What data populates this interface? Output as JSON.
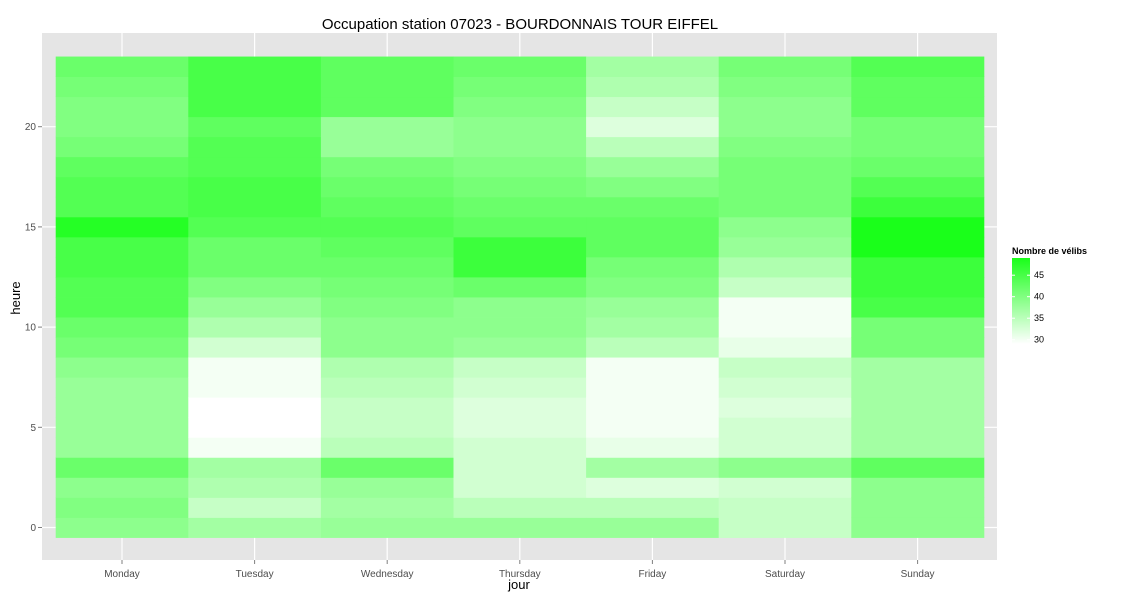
{
  "chart_data": {
    "type": "heatmap",
    "title": "Occupation station 07023 - BOURDONNAIS TOUR EIFFEL",
    "xlabel": "jour",
    "ylabel": "heure",
    "x_categories": [
      "Monday",
      "Tuesday",
      "Wednesday",
      "Thursday",
      "Friday",
      "Saturday",
      "Sunday"
    ],
    "y_hours": [
      0,
      1,
      2,
      3,
      4,
      5,
      6,
      7,
      8,
      9,
      10,
      11,
      12,
      13,
      14,
      15,
      16,
      17,
      18,
      19,
      20,
      21,
      22,
      23
    ],
    "y_ticks": [
      0,
      5,
      10,
      15,
      20
    ],
    "y_tick_labels": [
      "0",
      "5",
      "10",
      "15",
      "20"
    ],
    "value_range": [
      29,
      49
    ],
    "values": [
      [
        39,
        40,
        39,
        42,
        38,
        38,
        38,
        38,
        39,
        41,
        42,
        44,
        44,
        45,
        45,
        48,
        44,
        44,
        43,
        41,
        40,
        40,
        41,
        42
      ],
      [
        37,
        34,
        36,
        37,
        30,
        29,
        29,
        30,
        30,
        33,
        36,
        38,
        40,
        42,
        42,
        44,
        45,
        45,
        44,
        44,
        43,
        45,
        45,
        45
      ],
      [
        38,
        37,
        38,
        42,
        35,
        34,
        34,
        35,
        36,
        39,
        39,
        40,
        41,
        42,
        43,
        44,
        43,
        42,
        41,
        38,
        38,
        43,
        43,
        43
      ],
      [
        38,
        35,
        33,
        33,
        33,
        32,
        32,
        33,
        34,
        38,
        39,
        39,
        42,
        46,
        46,
        43,
        42,
        41,
        40,
        39,
        39,
        40,
        41,
        42
      ],
      [
        38,
        35,
        32,
        37,
        31,
        30,
        30,
        30,
        30,
        35,
        37,
        38,
        40,
        41,
        43,
        43,
        42,
        40,
        38,
        35,
        32,
        34,
        36,
        37
      ],
      [
        34,
        34,
        33,
        39,
        33,
        33,
        32,
        33,
        34,
        31,
        30,
        30,
        34,
        36,
        38,
        39,
        41,
        41,
        41,
        40,
        39,
        39,
        40,
        41
      ],
      [
        39,
        39,
        39,
        43,
        37,
        37,
        37,
        37,
        37,
        41,
        41,
        45,
        46,
        46,
        49,
        49,
        46,
        44,
        42,
        41,
        41,
        43,
        43,
        44
      ]
    ],
    "legend": {
      "title": "Nombre de vélibs",
      "ticks": [
        45,
        40,
        35,
        30
      ],
      "placement": "right"
    },
    "color_low": "#ffffff",
    "color_high": "#1aff1a",
    "panel_background": "#e5e5e5",
    "grid_color": "#ffffff",
    "grid": true
  }
}
